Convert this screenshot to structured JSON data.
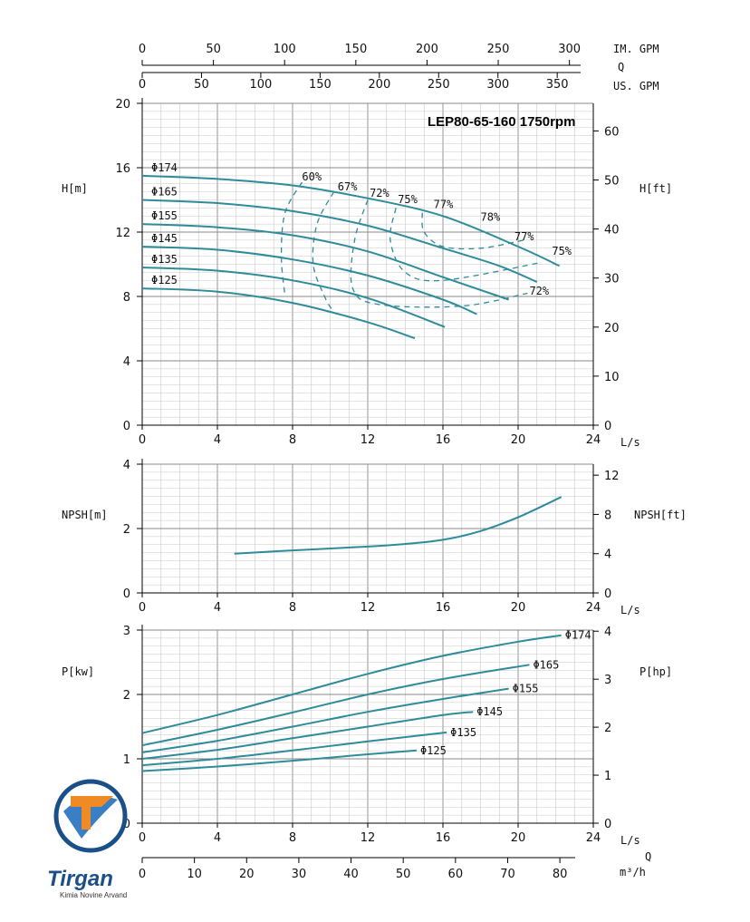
{
  "chart_data": [
    {
      "type": "line",
      "title": "LEP80-65-160 1750rpm",
      "xlabel": "L/s",
      "ylabel_left": "H[m]",
      "ylabel_right": "H[ft]",
      "xlim": [
        0,
        24
      ],
      "ylim": [
        0,
        20
      ],
      "x_ticks": [
        "0",
        "4",
        "8",
        "12",
        "16",
        "20",
        "24"
      ],
      "y_ticks": [
        "0",
        "4",
        "8",
        "12",
        "16",
        "20"
      ],
      "y_right_ticks": [
        "0",
        "10",
        "20",
        "30",
        "40",
        "50",
        "60"
      ],
      "top_axes": [
        {
          "label": "IM. GPM",
          "ticks": [
            "0",
            "50",
            "100",
            "150",
            "200",
            "250",
            "300"
          ]
        },
        {
          "label": "Q",
          "ticks": []
        },
        {
          "label": "US. GPM",
          "ticks": [
            "0",
            "50",
            "100",
            "150",
            "200",
            "250",
            "300",
            "350"
          ]
        }
      ],
      "series": [
        {
          "name": "Φ174",
          "x": [
            0,
            4,
            8,
            12,
            16,
            20,
            22.2
          ],
          "y": [
            15.5,
            15.3,
            14.9,
            14.1,
            13.0,
            11.1,
            9.9
          ]
        },
        {
          "name": "Φ165",
          "x": [
            0,
            4,
            8,
            12,
            16,
            19,
            21
          ],
          "y": [
            14.0,
            13.8,
            13.3,
            12.4,
            11.0,
            9.9,
            8.9
          ]
        },
        {
          "name": "Φ155",
          "x": [
            0,
            4,
            8,
            12,
            16,
            19.5
          ],
          "y": [
            12.5,
            12.3,
            11.8,
            10.8,
            9.2,
            7.8
          ]
        },
        {
          "name": "Φ145",
          "x": [
            0,
            4,
            8,
            12,
            16,
            17.8
          ],
          "y": [
            11.1,
            10.9,
            10.3,
            9.3,
            7.8,
            6.9
          ]
        },
        {
          "name": "Φ135",
          "x": [
            0,
            4,
            8,
            12,
            16.1
          ],
          "y": [
            9.8,
            9.6,
            9.0,
            7.9,
            6.1
          ]
        },
        {
          "name": "Φ125",
          "x": [
            0,
            4,
            8,
            12,
            14.5
          ],
          "y": [
            8.5,
            8.3,
            7.6,
            6.4,
            5.4
          ]
        }
      ],
      "efficiency_contours": [
        {
          "label": "60%",
          "x": [
            8.5,
            7.6,
            7.4,
            7.6
          ],
          "y": [
            15.1,
            13.2,
            10.5,
            8.0
          ]
        },
        {
          "label": "67%",
          "x": [
            10.2,
            9.3,
            9.1,
            9.7,
            10.2
          ],
          "y": [
            14.5,
            12.5,
            10.0,
            8.0,
            7.0
          ]
        },
        {
          "label": "72%",
          "x": [
            12.0,
            11.3,
            11.2,
            12.6,
            17,
            20.5
          ],
          "y": [
            14.0,
            11.5,
            8.5,
            7.5,
            7.4,
            8.2
          ]
        },
        {
          "label": "75%",
          "x": [
            13.5,
            13.2,
            14,
            16,
            21.2
          ],
          "y": [
            13.5,
            11.5,
            9.5,
            9.0,
            10.1
          ]
        },
        {
          "label": "77%",
          "x": [
            14.9,
            15,
            16,
            18,
            20.3
          ],
          "y": [
            13.2,
            12.0,
            11.1,
            11.0,
            11.5
          ]
        },
        {
          "label": "78%",
          "x": [],
          "y": []
        }
      ]
    },
    {
      "type": "line",
      "xlabel": "L/s",
      "ylabel_left": "NPSH[m]",
      "ylabel_right": "NPSH[ft]",
      "xlim": [
        0,
        24
      ],
      "ylim": [
        0,
        4
      ],
      "x_ticks": [
        "0",
        "4",
        "8",
        "12",
        "16",
        "20",
        "24"
      ],
      "y_ticks": [
        "0",
        "2",
        "4"
      ],
      "y_right_ticks": [
        "0",
        "4",
        "8",
        "12"
      ],
      "series": [
        {
          "name": "",
          "x": [
            4.9,
            8,
            12,
            14,
            16,
            18,
            20,
            22.3
          ],
          "y": [
            1.22,
            1.32,
            1.44,
            1.52,
            1.65,
            1.92,
            2.35,
            2.98
          ]
        }
      ]
    },
    {
      "type": "line",
      "xlabel": "L/s",
      "ylabel_left": "P[kw]",
      "ylabel_right": "P[hp]",
      "xlim": [
        0,
        24
      ],
      "ylim": [
        0,
        3
      ],
      "x_ticks": [
        "0",
        "4",
        "8",
        "12",
        "16",
        "20",
        "24"
      ],
      "y_ticks": [
        "0",
        "1",
        "2",
        "3"
      ],
      "y_right_ticks": [
        "0",
        "1",
        "2",
        "3",
        "4"
      ],
      "bottom_axis": {
        "label_q": "Q",
        "label_unit": "m³/h",
        "ticks": [
          "0",
          "10",
          "20",
          "30",
          "40",
          "50",
          "60",
          "70",
          "80"
        ]
      },
      "series": [
        {
          "name": "Φ174",
          "x": [
            0,
            4,
            8,
            12,
            16,
            20,
            22.3
          ],
          "y": [
            1.4,
            1.68,
            2.0,
            2.32,
            2.6,
            2.82,
            2.92
          ]
        },
        {
          "name": "Φ165",
          "x": [
            0,
            4,
            8,
            12,
            16,
            20.6
          ],
          "y": [
            1.21,
            1.45,
            1.72,
            2.0,
            2.24,
            2.46
          ]
        },
        {
          "name": "Φ155",
          "x": [
            0,
            4,
            8,
            12,
            16,
            19.5
          ],
          "y": [
            1.1,
            1.28,
            1.5,
            1.73,
            1.93,
            2.09
          ]
        },
        {
          "name": "Φ145",
          "x": [
            0,
            4,
            8,
            12,
            16,
            17.6
          ],
          "y": [
            1.0,
            1.14,
            1.32,
            1.5,
            1.68,
            1.73
          ]
        },
        {
          "name": "Φ135",
          "x": [
            0,
            4,
            8,
            12,
            16.2
          ],
          "y": [
            0.9,
            1.0,
            1.13,
            1.27,
            1.41
          ]
        },
        {
          "name": "Φ125",
          "x": [
            0,
            4,
            8,
            12,
            14.6
          ],
          "y": [
            0.81,
            0.88,
            0.97,
            1.07,
            1.13
          ]
        }
      ]
    }
  ],
  "colors": {
    "curve": "#2e8b9a",
    "grid_major": "#8a8a8a",
    "grid_minor": "#c8c8c8",
    "logo_blue": "#1a4f8a",
    "logo_orange": "#f08a24"
  },
  "logo": {
    "name": "Tirgan",
    "subtitle": "Kimia Novine Arvand"
  }
}
